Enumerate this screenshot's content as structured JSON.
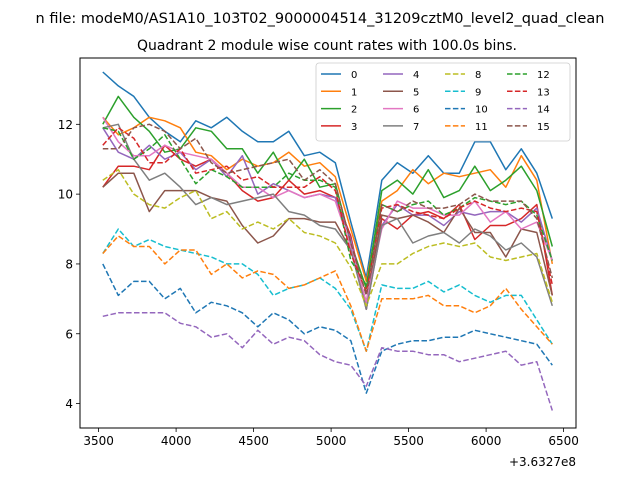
{
  "figure": {
    "suptitle": "n file: modeM0/AS1A10_103T02_9000004514_31209cztM0_level2_quad_clean",
    "title": "Quadrant 2 module wise count rates with 100.0s bins."
  },
  "chart_data": {
    "type": "line",
    "title": "Quadrant 2 module wise count rates with 100.0s bins.",
    "xlabel": "",
    "ylabel": "",
    "x_offset_label": "+3.6327e8",
    "xlim": [
      3380,
      6580
    ],
    "ylim": [
      3.3,
      13.9
    ],
    "xticks": [
      3500,
      4000,
      4500,
      5000,
      5500,
      6000,
      6500
    ],
    "yticks": [
      4,
      6,
      8,
      10,
      12
    ],
    "grid": false,
    "legend": {
      "location": "top-right",
      "columns": 4
    },
    "x": [
      3527,
      3627,
      3727,
      3827,
      3927,
      4027,
      4127,
      4227,
      4327,
      4427,
      4527,
      4627,
      4727,
      4827,
      4927,
      5027,
      5127,
      5227,
      5327,
      5427,
      5527,
      5627,
      5727,
      5827,
      5927,
      6027,
      6127,
      6227,
      6327,
      6427
    ],
    "series": [
      {
        "name": "0",
        "color": "#1f77b4",
        "dash": "solid",
        "values": [
          13.5,
          13.1,
          12.8,
          12.2,
          11.8,
          11.5,
          12.1,
          11.9,
          12.2,
          11.8,
          11.5,
          11.5,
          11.8,
          11.1,
          11.2,
          10.9,
          9.2,
          7.6,
          10.4,
          10.9,
          10.6,
          11.1,
          10.6,
          10.6,
          11.5,
          11.5,
          10.7,
          11.3,
          10.6,
          9.3
        ]
      },
      {
        "name": "1",
        "color": "#ff7f0e",
        "dash": "solid",
        "values": [
          12.2,
          11.7,
          11.9,
          12.2,
          12.1,
          11.9,
          11.2,
          11.1,
          10.7,
          11.0,
          10.8,
          10.9,
          11.2,
          10.8,
          10.9,
          10.5,
          9.0,
          7.5,
          9.8,
          10.1,
          10.7,
          10.3,
          10.6,
          10.5,
          10.6,
          10.7,
          10.2,
          11.1,
          10.4,
          8.0
        ]
      },
      {
        "name": "2",
        "color": "#2ca02c",
        "dash": "solid",
        "values": [
          12.0,
          12.8,
          12.2,
          11.8,
          11.2,
          11.3,
          11.9,
          11.8,
          11.3,
          11.3,
          10.6,
          11.2,
          10.4,
          11.0,
          10.2,
          10.3,
          8.6,
          7.3,
          10.1,
          10.4,
          10.0,
          10.7,
          9.9,
          10.1,
          10.8,
          10.1,
          10.4,
          10.8,
          10.1,
          8.5
        ]
      },
      {
        "name": "3",
        "color": "#d62728",
        "dash": "solid",
        "values": [
          10.2,
          10.8,
          10.8,
          10.7,
          11.4,
          11.0,
          10.8,
          11.0,
          10.6,
          10.1,
          9.8,
          9.9,
          10.4,
          10.0,
          10.1,
          9.9,
          8.8,
          6.7,
          9.3,
          9.0,
          9.4,
          9.5,
          9.3,
          9.7,
          8.7,
          9.1,
          9.1,
          9.3,
          9.7,
          7.1
        ]
      },
      {
        "name": "4",
        "color": "#9467bd",
        "dash": "solid",
        "values": [
          11.9,
          11.2,
          11.0,
          11.4,
          11.0,
          11.2,
          10.7,
          11.0,
          10.5,
          11.1,
          10.0,
          10.3,
          10.1,
          9.9,
          10.0,
          9.9,
          8.7,
          6.7,
          9.1,
          9.7,
          9.4,
          9.4,
          9.1,
          9.5,
          9.4,
          9.5,
          9.5,
          9.2,
          9.6,
          8.1
        ]
      },
      {
        "name": "5",
        "color": "#8c564b",
        "dash": "solid",
        "values": [
          10.2,
          10.6,
          10.6,
          9.5,
          10.1,
          10.1,
          10.1,
          9.9,
          9.8,
          9.1,
          8.6,
          8.8,
          9.3,
          9.3,
          9.2,
          9.2,
          8.4,
          6.9,
          9.4,
          9.3,
          9.4,
          9.2,
          8.9,
          9.6,
          8.9,
          8.9,
          8.2,
          9.0,
          8.9,
          7.1
        ]
      },
      {
        "name": "6",
        "color": "#e377c2",
        "dash": "solid",
        "values": [
          12.2,
          11.5,
          11.1,
          11.1,
          11.4,
          11.2,
          11.1,
          11.0,
          10.6,
          10.2,
          10.2,
          9.9,
          10.1,
          9.9,
          10.0,
          9.8,
          8.5,
          6.9,
          9.0,
          9.8,
          9.6,
          9.6,
          9.4,
          9.4,
          9.8,
          9.2,
          9.5,
          9.0,
          9.2,
          8.1
        ]
      },
      {
        "name": "7",
        "color": "#7f7f7f",
        "dash": "solid",
        "values": [
          11.9,
          12.0,
          11.0,
          10.4,
          10.6,
          10.2,
          9.7,
          9.9,
          9.7,
          9.8,
          9.9,
          10.0,
          9.5,
          9.4,
          9.1,
          9.0,
          8.4,
          6.7,
          9.1,
          9.3,
          8.6,
          8.8,
          8.9,
          8.6,
          9.0,
          8.8,
          8.4,
          8.6,
          8.2,
          6.8
        ]
      },
      {
        "name": "8",
        "color": "#bcbd22",
        "dash": "dashed",
        "values": [
          10.4,
          10.7,
          10.0,
          9.7,
          9.6,
          9.9,
          10.1,
          9.3,
          9.5,
          9.0,
          9.2,
          9.0,
          9.3,
          8.9,
          8.8,
          8.6,
          7.9,
          6.8,
          8.0,
          8.0,
          8.3,
          8.5,
          8.6,
          8.5,
          8.6,
          8.2,
          8.1,
          8.2,
          8.3,
          6.9
        ]
      },
      {
        "name": "9",
        "color": "#17becf",
        "dash": "dashed",
        "values": [
          8.3,
          9.0,
          8.5,
          8.7,
          8.5,
          8.4,
          8.3,
          8.2,
          8.0,
          8.0,
          7.7,
          7.1,
          7.3,
          7.4,
          7.6,
          7.3,
          6.7,
          5.5,
          7.4,
          7.3,
          7.3,
          7.5,
          7.2,
          7.4,
          7.1,
          6.9,
          7.1,
          7.1,
          6.4,
          5.7
        ]
      },
      {
        "name": "10",
        "color": "#1f77b4",
        "dash": "dashed",
        "values": [
          8.0,
          7.1,
          7.5,
          7.5,
          7.0,
          7.3,
          6.6,
          6.9,
          6.8,
          6.6,
          6.2,
          6.6,
          6.4,
          6.0,
          6.2,
          6.1,
          5.8,
          4.3,
          5.5,
          5.7,
          5.8,
          5.8,
          5.9,
          5.9,
          6.1,
          6.0,
          5.9,
          5.8,
          5.7,
          5.1
        ]
      },
      {
        "name": "11",
        "color": "#ff7f0e",
        "dash": "dashed",
        "values": [
          8.3,
          8.8,
          8.5,
          8.5,
          8.0,
          8.4,
          8.4,
          7.7,
          8.0,
          7.6,
          7.8,
          7.7,
          7.3,
          7.4,
          7.6,
          7.8,
          6.8,
          5.5,
          7.0,
          7.0,
          7.0,
          7.1,
          6.8,
          6.8,
          6.6,
          6.8,
          7.3,
          6.7,
          6.2,
          5.7
        ]
      },
      {
        "name": "12",
        "color": "#2ca02c",
        "dash": "dashed",
        "values": [
          11.9,
          11.8,
          11.0,
          11.3,
          11.7,
          11.0,
          10.3,
          10.7,
          10.5,
          10.2,
          10.2,
          10.2,
          10.6,
          10.4,
          10.4,
          10.2,
          8.1,
          7.4,
          9.7,
          9.5,
          9.7,
          9.8,
          9.4,
          9.6,
          9.9,
          9.8,
          9.7,
          9.8,
          9.4,
          8.1
        ]
      },
      {
        "name": "13",
        "color": "#d62728",
        "dash": "dashed",
        "values": [
          11.4,
          11.9,
          11.6,
          10.9,
          10.9,
          11.3,
          10.6,
          10.7,
          10.8,
          10.4,
          10.5,
          10.2,
          10.2,
          10.2,
          10.5,
          10.1,
          8.3,
          7.2,
          9.6,
          9.7,
          9.5,
          9.4,
          9.3,
          9.6,
          9.8,
          9.6,
          9.5,
          9.6,
          9.5,
          7.4
        ]
      },
      {
        "name": "14",
        "color": "#9467bd",
        "dash": "dashed",
        "values": [
          6.5,
          6.6,
          6.6,
          6.6,
          6.6,
          6.3,
          6.2,
          5.9,
          6.0,
          5.6,
          6.1,
          5.7,
          5.9,
          5.8,
          5.4,
          5.2,
          5.1,
          4.5,
          5.6,
          5.5,
          5.5,
          5.4,
          5.4,
          5.2,
          5.3,
          5.4,
          5.5,
          5.1,
          5.2,
          3.8
        ]
      },
      {
        "name": "15",
        "color": "#8c564b",
        "dash": "dashed",
        "values": [
          11.3,
          11.3,
          11.9,
          12.0,
          11.8,
          11.3,
          11.6,
          10.9,
          10.6,
          10.7,
          10.8,
          10.9,
          11.0,
          10.4,
          10.7,
          10.3,
          8.6,
          7.1,
          9.7,
          9.5,
          9.8,
          9.6,
          9.6,
          9.7,
          10.0,
          9.8,
          9.8,
          9.8,
          9.3,
          7.6
        ]
      }
    ]
  }
}
